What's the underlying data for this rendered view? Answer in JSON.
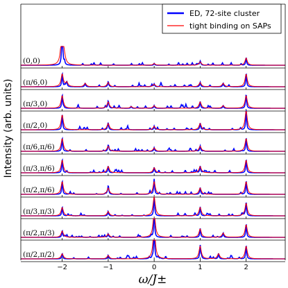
{
  "chart_data": {
    "type": "line",
    "layout": "stacked",
    "ylabel": "Intensity (arb. units)",
    "xlabel": "ω/J±",
    "xlim": [
      -2.9,
      2.85
    ],
    "xticks": [
      {
        "value": -2,
        "label": "−2"
      },
      {
        "value": -1,
        "label": "−1"
      },
      {
        "value": 0,
        "label": "0"
      },
      {
        "value": 1,
        "label": "1"
      },
      {
        "value": 2,
        "label": "2"
      }
    ],
    "legend": {
      "position": "top-right",
      "entries": [
        {
          "label": "ED, 72-site cluster",
          "color": "#0000ff"
        },
        {
          "label": "tight binding on SAPs",
          "color": "#ff0000"
        }
      ]
    },
    "series_colors": {
      "ed": "#0000ff",
      "tb": "#ff0000"
    },
    "panels": [
      {
        "label": "(0,0)",
        "peaks": [
          [
            -2.0,
            1.0
          ],
          [
            -1.95,
            0.08
          ],
          [
            0.0,
            0.04
          ],
          [
            1.0,
            0.08
          ],
          [
            2.0,
            0.17
          ]
        ]
      },
      {
        "label": "(π/6,0)",
        "peaks": [
          [
            -2.0,
            0.3
          ],
          [
            -1.9,
            0.1
          ],
          [
            -1.5,
            0.08
          ],
          [
            -1.0,
            0.1
          ],
          [
            0.0,
            0.06
          ],
          [
            1.0,
            0.1
          ],
          [
            1.5,
            0.08
          ],
          [
            2.0,
            0.3
          ]
        ]
      },
      {
        "label": "(π/3,0)",
        "peaks": [
          [
            -2.0,
            0.3
          ],
          [
            -1.0,
            0.15
          ],
          [
            -0.5,
            0.04
          ],
          [
            0.0,
            0.06
          ],
          [
            1.0,
            0.15
          ],
          [
            1.5,
            0.06
          ],
          [
            2.0,
            0.3
          ]
        ]
      },
      {
        "label": "(π/2,0)",
        "peaks": [
          [
            -2.0,
            0.35
          ],
          [
            -1.0,
            0.15
          ],
          [
            0.0,
            0.08
          ],
          [
            1.0,
            0.15
          ],
          [
            2.0,
            0.45
          ]
        ]
      },
      {
        "label": "(π/6,π/6)",
        "peaks": [
          [
            -2.0,
            0.3
          ],
          [
            -1.0,
            0.12
          ],
          [
            0.0,
            0.08
          ],
          [
            1.0,
            0.12
          ],
          [
            2.0,
            0.3
          ]
        ]
      },
      {
        "label": "(π/3,π/6)",
        "peaks": [
          [
            -2.0,
            0.3
          ],
          [
            -1.0,
            0.15
          ],
          [
            0.0,
            0.12
          ],
          [
            1.0,
            0.15
          ],
          [
            2.0,
            0.3
          ]
        ]
      },
      {
        "label": "(π/2,π/6)",
        "peaks": [
          [
            -2.0,
            0.3
          ],
          [
            -1.0,
            0.15
          ],
          [
            0.0,
            0.3
          ],
          [
            1.0,
            0.15
          ],
          [
            2.0,
            0.3
          ]
        ]
      },
      {
        "label": "(π/3,π/3)",
        "peaks": [
          [
            -2.0,
            0.2
          ],
          [
            -1.0,
            0.1
          ],
          [
            0.0,
            0.45
          ],
          [
            1.0,
            0.2
          ],
          [
            2.0,
            0.3
          ]
        ]
      },
      {
        "label": "(π/2,π/3)",
        "peaks": [
          [
            -2.0,
            0.15
          ],
          [
            -1.0,
            0.08
          ],
          [
            0.0,
            0.6
          ],
          [
            1.0,
            0.2
          ],
          [
            1.5,
            0.1
          ],
          [
            2.0,
            0.3
          ]
        ]
      },
      {
        "label": "(π/2,π/2)",
        "peaks": [
          [
            -2.0,
            0.12
          ],
          [
            -1.0,
            0.08
          ],
          [
            0.0,
            0.75
          ],
          [
            1.0,
            0.3
          ],
          [
            1.4,
            0.12
          ],
          [
            2.0,
            0.3
          ]
        ]
      }
    ]
  }
}
